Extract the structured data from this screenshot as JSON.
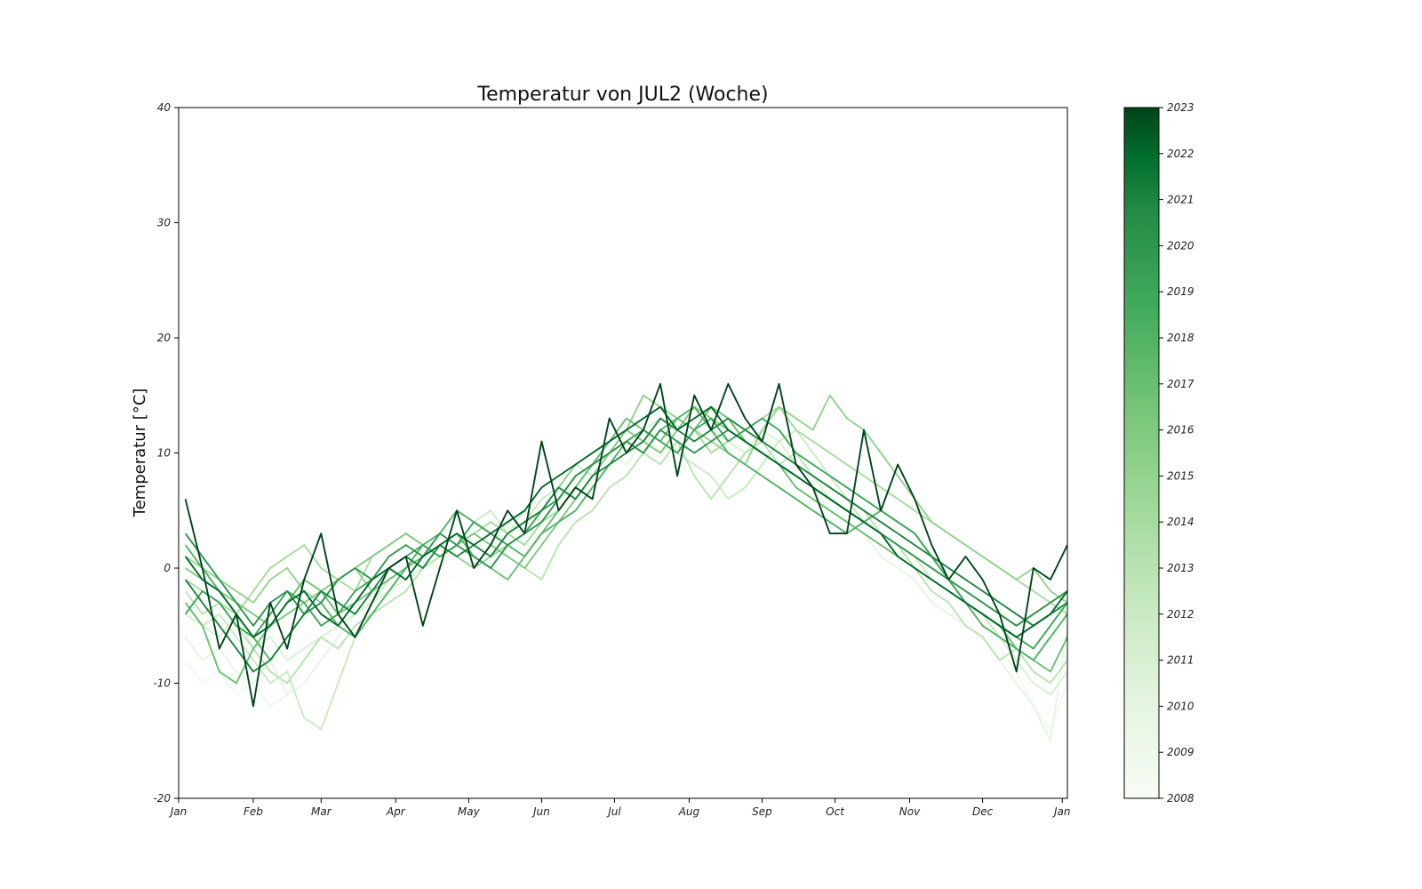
{
  "chart_data": {
    "type": "line",
    "title": "Temperatur von JUL2 (Woche)",
    "xlabel": "",
    "ylabel": "Temperatur [°C]",
    "ylim": [
      -20,
      40
    ],
    "yticks": [
      -20,
      -10,
      0,
      10,
      20,
      30,
      40
    ],
    "ytick_labels": [
      "-20",
      "-10",
      "0",
      "10",
      "20",
      "30",
      "40"
    ],
    "xlim": [
      0,
      52.4
    ],
    "xtick_labels": [
      "Jan",
      "Feb",
      "Mar",
      "Apr",
      "May",
      "Jun",
      "Jul",
      "Aug",
      "Sep",
      "Oct",
      "Nov",
      "Dec",
      "Jan"
    ],
    "xtick_weeks": [
      0,
      4.4,
      8.4,
      12.8,
      17.1,
      21.4,
      25.7,
      30.1,
      34.4,
      38.7,
      43.1,
      47.4,
      52.1
    ],
    "grid": false,
    "colormap": "Greens",
    "colorbar": {
      "min": 2008,
      "max": 2023,
      "ticks": [
        "2008",
        "2009",
        "2010",
        "2011",
        "2012",
        "2013",
        "2014",
        "2015",
        "2016",
        "2017",
        "2018",
        "2019",
        "2020",
        "2021",
        "2022",
        "2023"
      ],
      "color_low": "#f7fcf5",
      "color_high": "#00441b"
    },
    "x_weeks": [
      0.4,
      1.4,
      2.4,
      3.4,
      4.4,
      5.4,
      6.4,
      7.4,
      8.4,
      9.4,
      10.4,
      11.4,
      12.4,
      13.4,
      14.4,
      15.4,
      16.4,
      17.4,
      18.4,
      19.4,
      20.4,
      21.4,
      22.4,
      23.4,
      24.4,
      25.4,
      26.4,
      27.4,
      28.4,
      29.4,
      30.4,
      31.4,
      32.4,
      33.4,
      34.4,
      35.4,
      36.4,
      37.4,
      38.4,
      39.4,
      40.4,
      41.4,
      42.4,
      43.4,
      44.4,
      45.4,
      46.4,
      47.4,
      48.4,
      49.4,
      50.4,
      51.4,
      52.4
    ],
    "series": [
      {
        "year": 2008,
        "values": [
          -5,
          -3,
          -7,
          -8,
          -6,
          -7,
          -9,
          -6,
          -5,
          -4,
          -3,
          -5,
          -4,
          -2,
          -1,
          0,
          -1,
          1,
          0,
          1,
          2,
          3,
          4,
          6,
          8,
          10,
          9,
          11,
          10,
          12,
          9,
          10,
          12,
          11,
          10,
          9,
          8,
          7,
          6,
          4,
          3,
          2,
          1,
          0,
          -1,
          -2,
          -3,
          -4,
          -5,
          -7,
          -9,
          -11,
          -12
        ]
      },
      {
        "year": 2009,
        "values": [
          -8,
          -10,
          -9,
          -11,
          -10,
          -12,
          -11,
          -8,
          -6,
          -5,
          -3,
          -4,
          -3,
          -2,
          0,
          1,
          2,
          1,
          2,
          3,
          4,
          6,
          7,
          8,
          9,
          10,
          11,
          12,
          10,
          11,
          12,
          11,
          10,
          11,
          12,
          10,
          9,
          8,
          6,
          5,
          4,
          3,
          2,
          1,
          0,
          -1,
          -3,
          -5,
          -7,
          -9,
          -12,
          -14,
          -10
        ]
      },
      {
        "year": 2010,
        "values": [
          -6,
          -8,
          -7,
          -9,
          -10,
          -8,
          -11,
          -10,
          -8,
          -6,
          -4,
          -3,
          -2,
          -1,
          1,
          0,
          2,
          3,
          2,
          4,
          3,
          5,
          6,
          8,
          9,
          10,
          9,
          11,
          12,
          10,
          11,
          12,
          13,
          11,
          10,
          9,
          8,
          7,
          5,
          4,
          3,
          1,
          0,
          -1,
          -3,
          -4,
          -5,
          -6,
          -8,
          -10,
          -12,
          -15,
          -5
        ]
      },
      {
        "year": 2011,
        "values": [
          -4,
          -5,
          -6,
          -4,
          -7,
          -6,
          -8,
          -7,
          -6,
          -5,
          -4,
          -3,
          -2,
          -1,
          0,
          1,
          2,
          3,
          4,
          3,
          5,
          4,
          6,
          7,
          9,
          10,
          11,
          12,
          13,
          12,
          11,
          12,
          11,
          10,
          12,
          11,
          9,
          8,
          6,
          5,
          4,
          3,
          1,
          0,
          -1,
          -2,
          -3,
          -4,
          -6,
          -8,
          -10,
          -11,
          -9
        ]
      },
      {
        "year": 2012,
        "values": [
          -3,
          -5,
          -4,
          -6,
          -8,
          -10,
          -9,
          -13,
          -14,
          -10,
          -6,
          -3,
          -1,
          0,
          2,
          3,
          2,
          4,
          5,
          3,
          4,
          6,
          7,
          9,
          8,
          10,
          11,
          12,
          11,
          10,
          9,
          8,
          6,
          7,
          9,
          11,
          12,
          10,
          8,
          6,
          4,
          3,
          2,
          1,
          -1,
          -2,
          -3,
          -4,
          -6,
          -7,
          -8,
          -6,
          -4
        ]
      },
      {
        "year": 2013,
        "values": [
          -2,
          -4,
          -3,
          -5,
          -7,
          -9,
          -10,
          -8,
          -6,
          -7,
          -5,
          -4,
          -3,
          -2,
          0,
          1,
          2,
          3,
          2,
          1,
          0,
          -1,
          2,
          4,
          5,
          7,
          8,
          10,
          9,
          11,
          8,
          6,
          8,
          10,
          11,
          9,
          10,
          8,
          7,
          6,
          5,
          3,
          2,
          0,
          -2,
          -3,
          -5,
          -6,
          -8,
          -7,
          -9,
          -10,
          -8
        ]
      },
      {
        "year": 2014,
        "values": [
          -1,
          -2,
          -3,
          -4,
          -2,
          0,
          1,
          2,
          0,
          -1,
          -2,
          1,
          2,
          3,
          2,
          1,
          2,
          3,
          4,
          3,
          2,
          4,
          5,
          7,
          9,
          11,
          12,
          13,
          14,
          13,
          12,
          10,
          11,
          12,
          13,
          14,
          12,
          11,
          10,
          9,
          8,
          7,
          6,
          5,
          4,
          3,
          2,
          1,
          0,
          -1,
          -2,
          -3,
          -4
        ]
      },
      {
        "year": 2015,
        "values": [
          1,
          0,
          -1,
          -2,
          -3,
          -1,
          0,
          -2,
          -3,
          -1,
          0,
          -2,
          -1,
          0,
          1,
          2,
          1,
          0,
          1,
          2,
          3,
          5,
          7,
          9,
          10,
          11,
          12,
          15,
          14,
          13,
          12,
          11,
          10,
          9,
          12,
          14,
          13,
          12,
          15,
          13,
          12,
          10,
          8,
          6,
          4,
          3,
          2,
          1,
          0,
          -1,
          0,
          -2,
          -3
        ]
      },
      {
        "year": 2016,
        "values": [
          0,
          -1,
          -2,
          -3,
          -4,
          -5,
          -4,
          -3,
          -2,
          -1,
          0,
          1,
          2,
          3,
          2,
          1,
          2,
          3,
          2,
          1,
          0,
          2,
          4,
          6,
          8,
          10,
          12,
          11,
          10,
          12,
          14,
          13,
          12,
          11,
          10,
          9,
          8,
          7,
          6,
          5,
          4,
          3,
          2,
          1,
          0,
          -1,
          -2,
          -3,
          -4,
          -5,
          -4,
          -3,
          -2
        ]
      },
      {
        "year": 2017,
        "values": [
          -3,
          -5,
          -9,
          -10,
          -7,
          -5,
          -3,
          -1,
          -2,
          -4,
          -3,
          -2,
          -1,
          0,
          1,
          2,
          3,
          1,
          0,
          -1,
          1,
          3,
          5,
          7,
          9,
          11,
          13,
          12,
          11,
          13,
          12,
          14,
          13,
          11,
          10,
          9,
          7,
          6,
          5,
          4,
          3,
          2,
          1,
          0,
          -1,
          -2,
          -3,
          -4,
          -5,
          -7,
          -8,
          -9,
          -6
        ]
      },
      {
        "year": 2018,
        "values": [
          2,
          0,
          -2,
          -4,
          -6,
          -8,
          -6,
          -4,
          -3,
          -5,
          -6,
          -4,
          -2,
          0,
          2,
          3,
          5,
          4,
          3,
          2,
          1,
          3,
          4,
          5,
          7,
          9,
          11,
          10,
          12,
          13,
          14,
          12,
          10,
          9,
          8,
          7,
          6,
          5,
          4,
          3,
          4,
          5,
          4,
          3,
          1,
          -1,
          -3,
          -5,
          -6,
          -7,
          -8,
          -6,
          -4
        ]
      },
      {
        "year": 2019,
        "values": [
          -4,
          -2,
          -3,
          -5,
          -6,
          -4,
          -2,
          -3,
          -5,
          -4,
          -2,
          -1,
          0,
          1,
          2,
          1,
          2,
          4,
          3,
          2,
          3,
          5,
          6,
          8,
          9,
          10,
          11,
          12,
          11,
          10,
          12,
          13,
          11,
          12,
          13,
          12,
          10,
          9,
          8,
          7,
          6,
          5,
          4,
          3,
          1,
          -1,
          -3,
          -4,
          -5,
          -6,
          -7,
          -5,
          -3
        ]
      },
      {
        "year": 2020,
        "values": [
          3,
          1,
          -1,
          -3,
          -5,
          -3,
          -2,
          -4,
          -3,
          -1,
          0,
          -1,
          1,
          2,
          1,
          3,
          2,
          1,
          0,
          2,
          3,
          4,
          6,
          8,
          9,
          10,
          11,
          10,
          12,
          11,
          10,
          11,
          12,
          11,
          10,
          9,
          8,
          7,
          6,
          5,
          4,
          3,
          2,
          1,
          0,
          -1,
          -2,
          -3,
          -4,
          -5,
          -4,
          -3,
          -2
        ]
      },
      {
        "year": 2021,
        "values": [
          -1,
          -3,
          -5,
          -7,
          -9,
          -8,
          -6,
          -4,
          -2,
          -3,
          -4,
          -2,
          0,
          1,
          0,
          2,
          1,
          2,
          1,
          3,
          4,
          5,
          7,
          6,
          8,
          9,
          10,
          11,
          13,
          12,
          11,
          12,
          13,
          12,
          11,
          10,
          9,
          8,
          7,
          6,
          5,
          4,
          3,
          2,
          1,
          0,
          -1,
          -2,
          -3,
          -4,
          -5,
          -4,
          -3
        ]
      },
      {
        "year": 2022,
        "values": [
          1,
          -1,
          -2,
          -4,
          -6,
          -5,
          -3,
          -2,
          -4,
          -5,
          -3,
          -1,
          0,
          -1,
          1,
          2,
          3,
          2,
          3,
          4,
          5,
          7,
          8,
          9,
          10,
          11,
          12,
          13,
          14,
          12,
          13,
          14,
          12,
          11,
          10,
          9,
          8,
          7,
          6,
          5,
          4,
          3,
          1,
          0,
          -1,
          -2,
          -3,
          -4,
          -5,
          -6,
          -5,
          -4,
          -2
        ]
      },
      {
        "year": 2023,
        "values": [
          6,
          0,
          -7,
          -4,
          -12,
          -3,
          -7,
          -1,
          3,
          -4,
          -6,
          -3,
          0,
          1,
          -5,
          0,
          5,
          0,
          2,
          5,
          3,
          11,
          5,
          7,
          6,
          13,
          10,
          12,
          16,
          8,
          15,
          12,
          16,
          13,
          11,
          16,
          9,
          7,
          3,
          3,
          12,
          5,
          9,
          6,
          2,
          -1,
          1,
          -1,
          -4,
          -9,
          0,
          -1,
          2
        ]
      }
    ]
  }
}
